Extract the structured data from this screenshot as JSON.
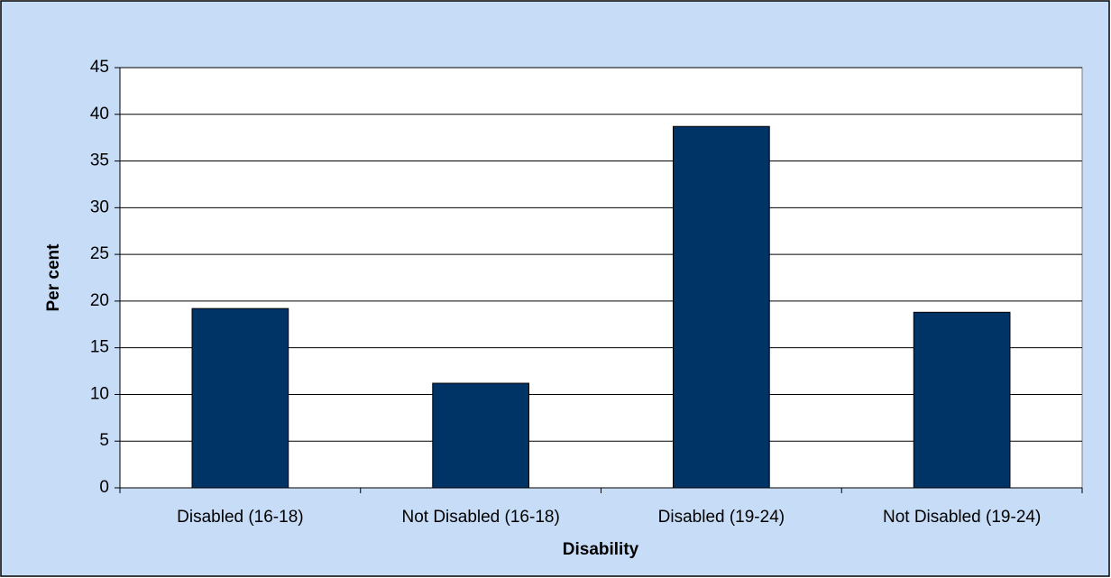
{
  "chart_data": {
    "type": "bar",
    "x_label": "Disability",
    "y_label": "Per cent",
    "categories": [
      "Disabled (16-18)",
      "Not Disabled (16-18)",
      "Disabled (19-24)",
      "Not Disabled (19-24)"
    ],
    "values": [
      19.2,
      11.2,
      38.7,
      18.8
    ],
    "color": "#003366",
    "ylim": [
      0,
      45
    ],
    "yticks": [
      0,
      5,
      10,
      15,
      20,
      25,
      30,
      35,
      40,
      45
    ],
    "grid": true
  }
}
